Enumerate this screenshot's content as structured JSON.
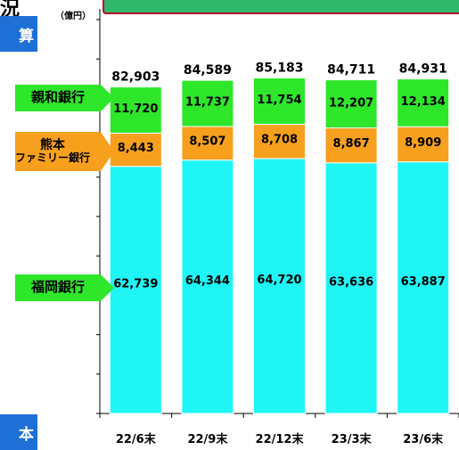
{
  "header": {
    "title_fragment": "況",
    "unit": "（億円）",
    "side_top": "算",
    "side_bottom": "本"
  },
  "colors": {
    "fukuoka": "#1ff5f5",
    "kumamoto": "#f7a01e",
    "shinwa": "#2ee62a",
    "banner": "#2fb86a",
    "side_box": "#1e6fd6"
  },
  "chart_data": {
    "type": "bar",
    "stacked": true,
    "categories": [
      "22/6末",
      "22/9末",
      "22/12末",
      "23/3末",
      "23/6末"
    ],
    "series": [
      {
        "name": "福岡銀行",
        "values": [
          62739,
          64344,
          64720,
          63636,
          63887
        ]
      },
      {
        "name": "熊本ファミリー銀行",
        "values": [
          8443,
          8507,
          8708,
          8867,
          8909
        ]
      },
      {
        "name": "親和銀行",
        "values": [
          11720,
          11737,
          11754,
          12207,
          12134
        ]
      }
    ],
    "totals": [
      82903,
      84589,
      85183,
      84711,
      84931
    ],
    "ylim": [
      0,
      100000
    ],
    "grid": false
  },
  "labels": {
    "shinwa": "親和銀行",
    "kumamoto_line1": "熊本",
    "kumamoto_line2": "ファミリー銀行",
    "fukuoka": "福岡銀行"
  }
}
